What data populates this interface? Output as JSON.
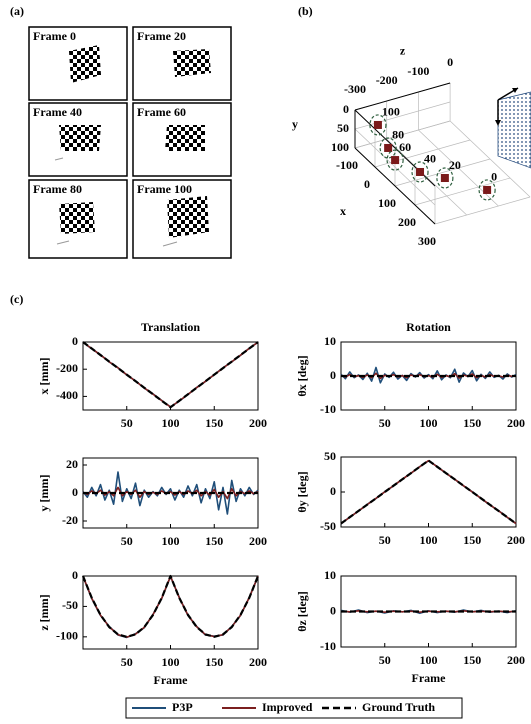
{
  "panel_labels": [
    "(a)",
    "(b)",
    "(c)"
  ],
  "frames": [
    "Frame 0",
    "Frame 20",
    "Frame 40",
    "Frame 60",
    "Frame 80",
    "Frame 100"
  ],
  "chart_data": [
    {
      "type": "scatter3d",
      "xlabel": "x",
      "ylabel": "y",
      "zlabel": "z",
      "xlim": [
        -100,
        300
      ],
      "ylim": [
        0,
        100
      ],
      "zlim": [
        -300,
        0
      ],
      "xticks": [
        -100,
        0,
        100,
        200,
        300
      ],
      "yticks": [
        0,
        50,
        100
      ],
      "zticks": [
        -300,
        -200,
        -100,
        0
      ],
      "frame_labels": [
        100,
        80,
        60,
        40,
        20,
        0
      ],
      "x": [
        -90,
        15,
        72,
        149,
        202,
        299
      ],
      "y": [
        50,
        50,
        50,
        50,
        50,
        50
      ],
      "z": [
        -234,
        -268,
        -282,
        -252,
        -207,
        -135
      ],
      "color": "#7a1a1a",
      "ring_color": "#2f5f3f"
    },
    {
      "type": "line",
      "title": "Translation",
      "ylabel": "x [mm]",
      "xlim": [
        0,
        200
      ],
      "ylim": [
        -500,
        0
      ],
      "xticks": [
        50,
        100,
        150,
        200
      ],
      "yticks": [
        -400,
        -200,
        0
      ],
      "x": [
        0,
        10,
        20,
        30,
        40,
        50,
        60,
        70,
        80,
        90,
        100,
        110,
        120,
        130,
        140,
        150,
        160,
        170,
        180,
        190,
        200
      ],
      "series": [
        {
          "name": "P3P",
          "color": "#1f4e79",
          "values": [
            -3,
            -50,
            -94,
            -147,
            -189,
            -243,
            -286,
            -339,
            -382,
            -430,
            -477,
            -435,
            -386,
            -334,
            -290,
            -239,
            -190,
            -146,
            -98,
            -46,
            -2
          ]
        },
        {
          "name": "Improved",
          "color": "#7b1f1f",
          "values": [
            -2,
            -49,
            -95,
            -146,
            -190,
            -241,
            -287,
            -338,
            -383,
            -431,
            -478,
            -433,
            -385,
            -335,
            -289,
            -241,
            -191,
            -145,
            -97,
            -47,
            -1
          ]
        },
        {
          "name": "Ground Truth",
          "color": "#000000",
          "dashed": true,
          "values": [
            0,
            -48,
            -96,
            -144,
            -192,
            -240,
            -288,
            -336,
            -384,
            -432,
            -480,
            -432,
            -384,
            -336,
            -288,
            -240,
            -192,
            -144,
            -96,
            -48,
            0
          ]
        }
      ]
    },
    {
      "type": "line",
      "title": "Rotation",
      "ylabel": "θx [deg]",
      "xlim": [
        0,
        200
      ],
      "ylim": [
        -10,
        10
      ],
      "xticks": [
        50,
        100,
        150,
        200
      ],
      "yticks": [
        -10,
        0,
        10
      ],
      "x": [
        0,
        5,
        10,
        15,
        20,
        25,
        30,
        35,
        40,
        45,
        50,
        55,
        60,
        65,
        70,
        75,
        80,
        85,
        90,
        95,
        100,
        105,
        110,
        115,
        120,
        125,
        130,
        135,
        140,
        145,
        150,
        155,
        160,
        165,
        170,
        175,
        180,
        185,
        190,
        195,
        200
      ],
      "series": [
        {
          "name": "P3P",
          "color": "#1f4e79",
          "values": [
            0.5,
            -0.8,
            1.2,
            -0.5,
            0.3,
            -1.0,
            0.8,
            -1.5,
            2.5,
            -2.0,
            0.6,
            -0.4,
            1.1,
            -0.9,
            0.2,
            -1.3,
            0.7,
            -0.3,
            1.0,
            -0.6,
            0.4,
            -0.8,
            1.5,
            -1.1,
            0.3,
            -0.5,
            2.0,
            -1.8,
            0.9,
            -0.2,
            1.6,
            -1.4,
            0.5,
            -0.7,
            1.2,
            -0.4,
            0.2,
            -0.9,
            0.6,
            -0.3,
            0.4
          ]
        },
        {
          "name": "Improved",
          "color": "#7b1f1f",
          "values": [
            0.2,
            -0.3,
            0.4,
            -0.2,
            0.1,
            -0.4,
            0.3,
            -0.5,
            0.8,
            -0.7,
            0.2,
            -0.1,
            0.4,
            -0.3,
            0.1,
            -0.5,
            0.3,
            -0.1,
            0.4,
            -0.2,
            0.1,
            -0.3,
            0.5,
            -0.4,
            0.1,
            -0.2,
            0.7,
            -0.6,
            0.3,
            -0.1,
            0.6,
            -0.5,
            0.2,
            -0.3,
            0.4,
            -0.1,
            0.1,
            -0.3,
            0.2,
            -0.1,
            0.1
          ]
        },
        {
          "name": "Ground Truth",
          "color": "#000000",
          "dashed": true,
          "values": [
            0,
            0,
            0,
            0,
            0,
            0,
            0,
            0,
            0,
            0,
            0,
            0,
            0,
            0,
            0,
            0,
            0,
            0,
            0,
            0,
            0,
            0,
            0,
            0,
            0,
            0,
            0,
            0,
            0,
            0,
            0,
            0,
            0,
            0,
            0,
            0,
            0,
            0,
            0,
            0,
            0
          ]
        }
      ]
    },
    {
      "type": "line",
      "ylabel": "y [mm]",
      "xlim": [
        0,
        200
      ],
      "ylim": [
        -25,
        25
      ],
      "xticks": [
        50,
        100,
        150,
        200
      ],
      "yticks": [
        -20,
        0,
        20
      ],
      "x": [
        0,
        5,
        10,
        15,
        20,
        25,
        30,
        35,
        40,
        45,
        50,
        55,
        60,
        65,
        70,
        75,
        80,
        85,
        90,
        95,
        100,
        105,
        110,
        115,
        120,
        125,
        130,
        135,
        140,
        145,
        150,
        155,
        160,
        165,
        170,
        175,
        180,
        185,
        190,
        195,
        200
      ],
      "series": [
        {
          "name": "P3P",
          "color": "#1f4e79",
          "values": [
            1,
            -3,
            4,
            -2,
            6,
            -5,
            2,
            -8,
            15,
            -6,
            3,
            -4,
            7,
            -9,
            2,
            -3,
            1,
            -2,
            4,
            -1,
            3,
            -5,
            2,
            -3,
            5,
            -2,
            6,
            -7,
            3,
            -4,
            8,
            -12,
            4,
            -15,
            9,
            -6,
            3,
            -2,
            4,
            -1,
            2
          ]
        },
        {
          "name": "Improved",
          "color": "#7b1f1f",
          "values": [
            0.5,
            -1,
            1.5,
            -0.5,
            2,
            -1.5,
            1,
            -2,
            4,
            -2,
            1,
            -1,
            2,
            -3,
            1,
            -1,
            0.5,
            -1,
            1.5,
            -0.5,
            1,
            -1.5,
            1,
            -1,
            1.5,
            -0.5,
            2,
            -2,
            1,
            -1.5,
            2.5,
            -3,
            1,
            -4,
            3,
            -2,
            1,
            -0.5,
            1.5,
            -0.5,
            1
          ]
        },
        {
          "name": "Ground Truth",
          "color": "#000000",
          "dashed": true,
          "values": [
            0,
            0,
            0,
            0,
            0,
            0,
            0,
            0,
            0,
            0,
            0,
            0,
            0,
            0,
            0,
            0,
            0,
            0,
            0,
            0,
            0,
            0,
            0,
            0,
            0,
            0,
            0,
            0,
            0,
            0,
            0,
            0,
            0,
            0,
            0,
            0,
            0,
            0,
            0,
            0,
            0
          ]
        }
      ]
    },
    {
      "type": "line",
      "ylabel": "θy [deg]",
      "xlim": [
        0,
        200
      ],
      "ylim": [
        -50,
        50
      ],
      "xticks": [
        50,
        100,
        150,
        200
      ],
      "yticks": [
        -50,
        0,
        50
      ],
      "x": [
        0,
        10,
        20,
        30,
        40,
        50,
        60,
        70,
        80,
        90,
        100,
        110,
        120,
        130,
        140,
        150,
        160,
        170,
        180,
        190,
        200
      ],
      "series": [
        {
          "name": "P3P",
          "color": "#1f4e79",
          "values": [
            -45.5,
            -35.8,
            -27.3,
            -17.6,
            -9.2,
            0.4,
            8.7,
            18.3,
            26.8,
            36.2,
            44.6,
            36.3,
            26.7,
            18.2,
            8.8,
            0.3,
            -9.1,
            -18.4,
            -26.6,
            -36.3,
            -45.2
          ]
        },
        {
          "name": "Improved",
          "color": "#7b1f1f",
          "values": [
            -45.2,
            -36.1,
            -27.1,
            -17.9,
            -9.1,
            0.2,
            8.9,
            18.1,
            26.9,
            36.1,
            44.8,
            36.1,
            26.9,
            18.1,
            8.9,
            0.1,
            -9.0,
            -18.2,
            -26.8,
            -36.1,
            -45.1
          ]
        },
        {
          "name": "Ground Truth",
          "color": "#000000",
          "dashed": true,
          "values": [
            -45,
            -36,
            -27,
            -18,
            -9,
            0,
            9,
            18,
            27,
            36,
            45,
            36,
            27,
            18,
            9,
            0,
            -9,
            -18,
            -27,
            -36,
            -45
          ]
        }
      ]
    },
    {
      "type": "line",
      "ylabel": "z [mm]",
      "xlabel": "Frame",
      "xlim": [
        0,
        200
      ],
      "ylim": [
        -120,
        0
      ],
      "xticks": [
        50,
        100,
        150,
        200
      ],
      "yticks": [
        -100,
        -50,
        0
      ],
      "x": [
        0,
        10,
        20,
        30,
        40,
        50,
        60,
        70,
        80,
        90,
        100,
        110,
        120,
        130,
        140,
        150,
        160,
        170,
        180,
        190,
        200
      ],
      "series": [
        {
          "name": "P3P",
          "color": "#1f4e79",
          "values": [
            -1,
            -37,
            -65,
            -83,
            -97,
            -101,
            -95,
            -85,
            -63,
            -37,
            -1,
            -35,
            -65,
            -83,
            -97,
            -99,
            -97,
            -83,
            -65,
            -35,
            -1
          ]
        },
        {
          "name": "Improved",
          "color": "#7b1f1f",
          "values": [
            -0.5,
            -36.5,
            -64.5,
            -83.5,
            -96.5,
            -100.5,
            -95.5,
            -84.5,
            -63.5,
            -36.5,
            -0.5,
            -35.5,
            -64.5,
            -83.5,
            -96.5,
            -99.5,
            -96.5,
            -83.5,
            -64.5,
            -35.5,
            -0.5
          ]
        },
        {
          "name": "Ground Truth",
          "color": "#000000",
          "dashed": true,
          "values": [
            0,
            -36,
            -64,
            -84,
            -96,
            -100,
            -96,
            -84,
            -64,
            -36,
            0,
            -36,
            -64,
            -84,
            -96,
            -100,
            -96,
            -84,
            -64,
            -36,
            0
          ]
        }
      ]
    },
    {
      "type": "line",
      "ylabel": "θz [deg]",
      "xlabel": "Frame",
      "xlim": [
        0,
        200
      ],
      "ylim": [
        -10,
        10
      ],
      "xticks": [
        50,
        100,
        150,
        200
      ],
      "yticks": [
        -10,
        0,
        10
      ],
      "x": [
        0,
        10,
        20,
        30,
        40,
        50,
        60,
        70,
        80,
        90,
        100,
        110,
        120,
        130,
        140,
        150,
        160,
        170,
        180,
        190,
        200
      ],
      "series": [
        {
          "name": "P3P",
          "color": "#1f4e79",
          "values": [
            0.3,
            -0.2,
            0.4,
            -0.3,
            0.1,
            -0.4,
            0.2,
            -0.1,
            0.3,
            -0.5,
            0.2,
            -0.3,
            0.1,
            -0.2,
            0.4,
            -0.1,
            0.3,
            -0.2,
            0.1,
            -0.3,
            0.2
          ]
        },
        {
          "name": "Improved",
          "color": "#7b1f1f",
          "values": [
            0.1,
            -0.1,
            0.2,
            -0.1,
            0.1,
            -0.2,
            0.1,
            -0.1,
            0.1,
            -0.2,
            0.1,
            -0.1,
            0.1,
            -0.1,
            0.2,
            -0.1,
            0.1,
            -0.1,
            0.1,
            -0.1,
            0.1
          ]
        },
        {
          "name": "Ground Truth",
          "color": "#000000",
          "dashed": true,
          "values": [
            0,
            0,
            0,
            0,
            0,
            0,
            0,
            0,
            0,
            0,
            0,
            0,
            0,
            0,
            0,
            0,
            0,
            0,
            0,
            0,
            0
          ]
        }
      ]
    }
  ]
}
